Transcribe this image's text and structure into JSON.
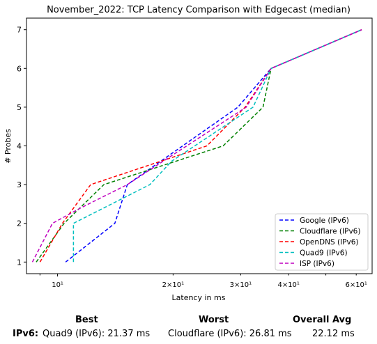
{
  "chart_data": {
    "type": "line",
    "title": "November_2022: TCP Latency Comparison with Edgecast (median)",
    "xlabel": "Latency in ms",
    "ylabel": "# Probes",
    "x_scale": "log",
    "xlim": [
      8.3,
      66
    ],
    "ylim": [
      0.7,
      7.3
    ],
    "x_ticks": [
      {
        "value": 10,
        "label": "10¹",
        "major": true
      },
      {
        "value": 20,
        "label": "2×10¹",
        "major": false
      },
      {
        "value": 30,
        "label": "3×10¹",
        "major": false
      },
      {
        "value": 40,
        "label": "4×10¹",
        "major": false
      },
      {
        "value": 60,
        "label": "6×10¹",
        "major": false
      }
    ],
    "y_ticks": [
      1,
      2,
      3,
      4,
      5,
      6,
      7
    ],
    "grid": false,
    "legend_position": "lower-right",
    "series": [
      {
        "name": "Google (IPv6)",
        "color": "#0000ff",
        "points": [
          [
            10.5,
            1
          ],
          [
            14.1,
            2
          ],
          [
            15.2,
            3
          ],
          [
            29.5,
            5
          ],
          [
            36.0,
            6
          ],
          [
            62.0,
            7
          ]
        ]
      },
      {
        "name": "Cloudflare (IPv6)",
        "color": "#008000",
        "points": [
          [
            8.8,
            1
          ],
          [
            10.4,
            2
          ],
          [
            13.2,
            3
          ],
          [
            27.0,
            4
          ],
          [
            34.3,
            5
          ],
          [
            36.0,
            6
          ],
          [
            62.0,
            7
          ]
        ]
      },
      {
        "name": "OpenDNS (IPv6)",
        "color": "#ff0000",
        "points": [
          [
            9.0,
            1
          ],
          [
            10.3,
            2
          ],
          [
            12.2,
            3
          ],
          [
            24.5,
            4
          ],
          [
            30.8,
            5
          ],
          [
            36.0,
            6
          ],
          [
            62.0,
            7
          ]
        ]
      },
      {
        "name": "Quad9 (IPv6)",
        "color": "#00bfbf",
        "points": [
          [
            11.0,
            1
          ],
          [
            11.0,
            2
          ],
          [
            17.4,
            3
          ],
          [
            19.8,
            3.6
          ],
          [
            32.3,
            5
          ],
          [
            36.0,
            6
          ],
          [
            62.0,
            7
          ]
        ]
      },
      {
        "name": "ISP (IPv6)",
        "color": "#bf00bf",
        "points": [
          [
            8.6,
            1
          ],
          [
            9.7,
            2
          ],
          [
            11.5,
            2.4
          ],
          [
            15.2,
            3
          ],
          [
            31.0,
            5
          ],
          [
            36.0,
            6
          ],
          [
            62.0,
            7
          ]
        ]
      }
    ]
  },
  "summary": {
    "headers": {
      "best": "Best",
      "worst": "Worst",
      "avg": "Overall Avg"
    },
    "row_label": "IPv6:",
    "best": "Quad9 (IPv6): 21.37 ms",
    "worst": "Cloudflare (IPv6): 26.81 ms",
    "avg": "22.12 ms"
  }
}
